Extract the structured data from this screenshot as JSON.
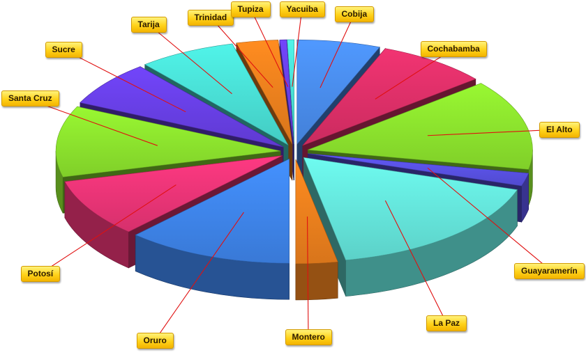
{
  "chart_data": {
    "type": "pie",
    "style": "3d-exploded",
    "title": "",
    "slices": [
      {
        "name": "Cobija",
        "value": 6,
        "color": "#4a8ef0"
      },
      {
        "name": "Cochabamba",
        "value": 8,
        "color": "#e0306a"
      },
      {
        "name": "El Alto",
        "value": 14,
        "color": "#8ee62e"
      },
      {
        "name": "Guayaramerín",
        "value": 2,
        "color": "#5a52e6"
      },
      {
        "name": "La Paz",
        "value": 17,
        "color": "#66e8de"
      },
      {
        "name": "Montero",
        "value": 3,
        "color": "#f0821e"
      },
      {
        "name": "Oruro",
        "value": 12,
        "color": "#3f86ee"
      },
      {
        "name": "Potosí",
        "value": 9,
        "color": "#ee3578"
      },
      {
        "name": "Santa Cruz",
        "value": 11,
        "color": "#8ee62e"
      },
      {
        "name": "Sucre",
        "value": 7,
        "color": "#6a40e8"
      },
      {
        "name": "Tarija",
        "value": 7,
        "color": "#4ae2d8"
      },
      {
        "name": "Trinidad",
        "value": 3,
        "color": "#f0821e"
      },
      {
        "name": "Tupiza",
        "value": 0.5,
        "color": "#6a40e8"
      },
      {
        "name": "Yacuiba",
        "value": 0.5,
        "color": "#4ae2d8"
      }
    ]
  }
}
